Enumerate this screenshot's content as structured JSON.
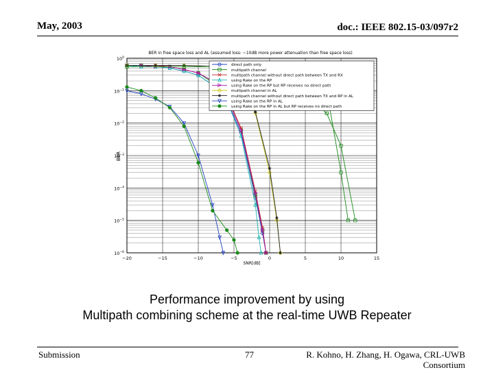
{
  "header": {
    "date": "May, 2003",
    "doc": "doc.: IEEE 802.15-03/097r2"
  },
  "footer": {
    "left": "Submission",
    "page": "77",
    "authors_line1": "R. Kohno, H. Zhang, H. Ogawa, CRL-UWB",
    "authors_line2": "Consortium"
  },
  "caption": {
    "line1": "Performance improvement by using",
    "line2": "Multipath combining scheme at the real-time UWB Repeater"
  },
  "chart_data": {
    "type": "line",
    "title": "BER in free space loss and AL (assumed loss: ~10dB more power attenuation than free space loss)",
    "xlabel": "SNR[dB]",
    "ylabel": "BER",
    "xlim": [
      -20,
      15
    ],
    "ylim": [
      1e-06,
      1
    ],
    "yscale": "log",
    "grid": true,
    "legend_position": "top-right",
    "x_ticks": [
      "-20",
      "-15",
      "-10",
      "-5",
      "0",
      "5",
      "10",
      "15"
    ],
    "y_ticks": [
      {
        "base": "10",
        "exp": "0"
      },
      {
        "base": "10",
        "exp": "-1"
      },
      {
        "base": "10",
        "exp": "-2"
      },
      {
        "base": "10",
        "exp": "-3"
      },
      {
        "base": "10",
        "exp": "-4"
      },
      {
        "base": "10",
        "exp": "-5"
      },
      {
        "base": "10",
        "exp": "-6"
      }
    ],
    "series": [
      {
        "name": "direct path only",
        "color": "#1f3fbf",
        "marker": "circle",
        "x": [
          -20,
          -18,
          -16,
          -14,
          -12,
          -10,
          -8,
          -6,
          -4,
          -2,
          -1,
          -0.5
        ],
        "y": [
          0.6,
          0.55,
          0.55,
          0.5,
          0.4,
          0.3,
          0.15,
          0.05,
          0.005,
          5e-05,
          4e-06,
          1e-06
        ]
      },
      {
        "name": "multipath channel",
        "color": "#1a8a1a",
        "marker": "square",
        "x": [
          -20,
          -18,
          -16,
          -14,
          -12,
          -10,
          -8,
          -6,
          -4,
          -2,
          -1,
          -0.5
        ],
        "y": [
          0.6,
          0.6,
          0.55,
          0.55,
          0.45,
          0.35,
          0.18,
          0.06,
          0.006,
          6e-05,
          5e-06,
          1e-06
        ]
      },
      {
        "name": "multipath channel without direct path between TX and RX",
        "color": "#c41a1a",
        "marker": "x",
        "x": [
          -20,
          -18,
          -16,
          -14,
          -12,
          -10,
          -8,
          -6,
          -4,
          -2,
          -1,
          -0.5
        ],
        "y": [
          0.6,
          0.6,
          0.6,
          0.55,
          0.45,
          0.35,
          0.2,
          0.07,
          0.007,
          8e-05,
          6e-06,
          1e-06
        ]
      },
      {
        "name": "using Rake on the RP",
        "color": "#19b3b3",
        "marker": "triangle-up",
        "x": [
          -20,
          -18,
          -16,
          -14,
          -12,
          -10,
          -8,
          -6,
          -4,
          -2,
          -1.5,
          -1.2
        ],
        "y": [
          0.6,
          0.55,
          0.55,
          0.5,
          0.4,
          0.3,
          0.15,
          0.05,
          0.004,
          3e-05,
          3e-06,
          1e-06
        ]
      },
      {
        "name": "using Rake on the RP but RP receives no direct path",
        "color": "#b01ab0",
        "marker": "triangle-right",
        "x": [
          -20,
          -18,
          -16,
          -14,
          -12,
          -10,
          -8,
          -6,
          -4,
          -2,
          -1,
          -0.5
        ],
        "y": [
          0.6,
          0.6,
          0.55,
          0.55,
          0.45,
          0.35,
          0.2,
          0.06,
          0.006,
          7e-05,
          5e-06,
          1e-06
        ]
      },
      {
        "name": "multipath channel in AL",
        "color": "#c8c81a",
        "marker": "diamond",
        "x": [
          -20,
          -16,
          -12,
          -8,
          -6,
          -4,
          -2,
          0,
          1,
          1.5
        ],
        "y": [
          0.6,
          0.6,
          0.6,
          0.55,
          0.4,
          0.15,
          0.02,
          0.0003,
          1e-05,
          1e-06
        ]
      },
      {
        "name": "multipath channel without direct path between TX and RP in AL",
        "color": "#222222",
        "marker": "star",
        "x": [
          -20,
          -16,
          -12,
          -8,
          -6,
          -4,
          -2,
          0,
          1,
          1.5
        ],
        "y": [
          0.6,
          0.6,
          0.6,
          0.55,
          0.42,
          0.16,
          0.022,
          0.0004,
          1.2e-05,
          1e-06
        ]
      },
      {
        "name": "using Rake on the RP in AL",
        "color": "#1f3fbf",
        "marker": "triangle-down",
        "x": [
          -20,
          -18,
          -16,
          -14,
          -12,
          -10,
          -8,
          -7,
          -6.5
        ],
        "y": [
          0.1,
          0.08,
          0.055,
          0.032,
          0.01,
          0.001,
          3e-05,
          3e-06,
          1e-06
        ]
      },
      {
        "name": "using Rake on the RP in AL but RP receives no direct path",
        "color": "#1a8a1a",
        "marker": "circle-dot",
        "x": [
          -20,
          -18,
          -16,
          -14,
          -12,
          -10,
          -8,
          -6,
          -5,
          -4.5
        ],
        "y": [
          0.13,
          0.1,
          0.06,
          0.03,
          0.008,
          0.0006,
          2e-05,
          5e-06,
          2.5e-06,
          1e-06
        ]
      },
      {
        "name": "",
        "color": "#1a8a1a",
        "marker": "square",
        "x": [
          -20,
          -12,
          -5,
          0,
          4,
          8,
          10,
          11
        ],
        "y": [
          0.55,
          0.55,
          0.55,
          0.52,
          0.3,
          0.1,
          0.0003,
          1e-05
        ]
      },
      {
        "name": "",
        "color": "#1a8a1a",
        "marker": "square",
        "x": [
          -5,
          0,
          4,
          8,
          10,
          12
        ],
        "y": [
          0.3,
          0.3,
          0.12,
          0.02,
          0.002,
          1e-05
        ]
      }
    ]
  }
}
